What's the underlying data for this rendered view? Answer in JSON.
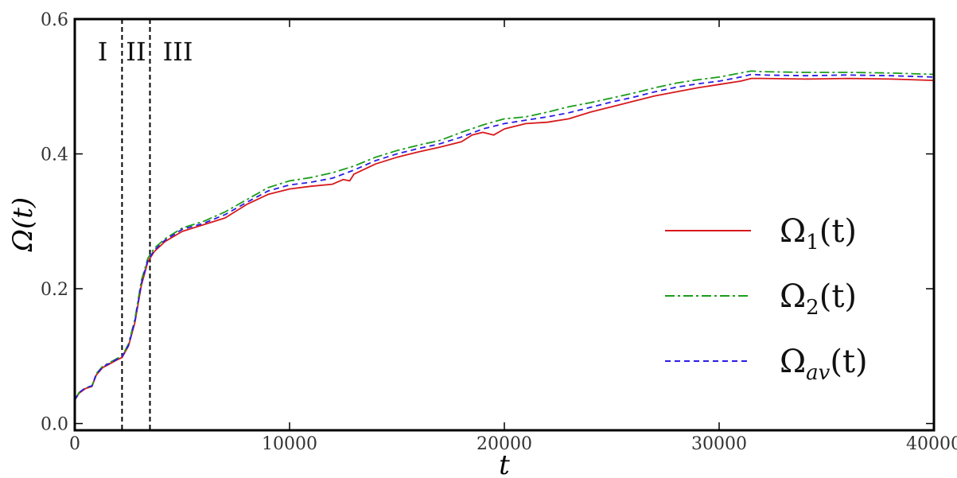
{
  "chart_data": {
    "type": "line",
    "xlabel": "t",
    "ylabel": "Ω(t)",
    "xlim": [
      0,
      40000
    ],
    "ylim": [
      -0.01,
      0.6
    ],
    "x_ticks": [
      0,
      10000,
      20000,
      30000,
      40000
    ],
    "x_tick_labels": [
      "0",
      "10000",
      "20000",
      "30000",
      "40000"
    ],
    "y_ticks": [
      0.0,
      0.2,
      0.4,
      0.6
    ],
    "y_tick_labels": [
      "0.0",
      "0.2",
      "0.4",
      "0.6"
    ],
    "grid": false,
    "legend_position": "right",
    "vlines": [
      {
        "x": 2200,
        "style": "dashed",
        "color": "#000000"
      },
      {
        "x": 3500,
        "style": "dashed",
        "color": "#000000"
      }
    ],
    "regions": [
      {
        "label": "I",
        "x": 1300
      },
      {
        "label": "II",
        "x": 2850
      },
      {
        "label": "III",
        "x": 4800
      }
    ],
    "series": [
      {
        "name_main": "Ω",
        "name_sub": "1",
        "name_suffix": "(t)",
        "color": "#d7191c",
        "dash": "",
        "x": [
          0,
          200,
          500,
          800,
          1000,
          1300,
          1600,
          2000,
          2200,
          2500,
          2800,
          3100,
          3400,
          3700,
          4200,
          5000,
          6000,
          7000,
          8000,
          9000,
          10000,
          11000,
          12000,
          12500,
          12800,
          13000,
          14000,
          15000,
          16000,
          17000,
          18000,
          18500,
          19000,
          19500,
          20000,
          21000,
          22000,
          23000,
          24000,
          25000,
          26000,
          27000,
          28000,
          29000,
          30000,
          31000,
          31500,
          32000,
          34000,
          36000,
          38000,
          40000
        ],
        "y": [
          0.035,
          0.045,
          0.052,
          0.055,
          0.072,
          0.083,
          0.088,
          0.095,
          0.098,
          0.115,
          0.15,
          0.205,
          0.24,
          0.255,
          0.27,
          0.285,
          0.295,
          0.305,
          0.325,
          0.34,
          0.348,
          0.352,
          0.355,
          0.362,
          0.36,
          0.37,
          0.385,
          0.395,
          0.403,
          0.41,
          0.418,
          0.428,
          0.432,
          0.428,
          0.437,
          0.445,
          0.447,
          0.452,
          0.462,
          0.47,
          0.478,
          0.486,
          0.492,
          0.498,
          0.503,
          0.508,
          0.512,
          0.512,
          0.511,
          0.512,
          0.511,
          0.509
        ]
      },
      {
        "name_main": "Ω",
        "name_sub": "2",
        "name_suffix": "(t)",
        "color": "#1a9d1a",
        "dash": "12,4,3,4",
        "x": [
          0,
          200,
          500,
          800,
          1000,
          1300,
          1600,
          2000,
          2200,
          2500,
          2800,
          3100,
          3400,
          3700,
          4200,
          5000,
          6000,
          7000,
          8000,
          9000,
          10000,
          11000,
          12000,
          13000,
          14000,
          15000,
          16000,
          17000,
          18000,
          19000,
          20000,
          21000,
          22000,
          23000,
          24000,
          25000,
          26000,
          27000,
          28000,
          29000,
          30000,
          31000,
          31500,
          32000,
          34000,
          36000,
          38000,
          40000
        ],
        "y": [
          0.035,
          0.046,
          0.053,
          0.056,
          0.074,
          0.085,
          0.09,
          0.097,
          0.1,
          0.118,
          0.155,
          0.212,
          0.245,
          0.26,
          0.274,
          0.29,
          0.3,
          0.314,
          0.332,
          0.35,
          0.36,
          0.365,
          0.372,
          0.382,
          0.395,
          0.405,
          0.413,
          0.42,
          0.432,
          0.443,
          0.452,
          0.455,
          0.462,
          0.47,
          0.476,
          0.483,
          0.49,
          0.498,
          0.505,
          0.51,
          0.514,
          0.52,
          0.523,
          0.522,
          0.521,
          0.521,
          0.52,
          0.518
        ]
      },
      {
        "name_main": "Ω",
        "name_sub": "av",
        "name_suffix": "(t)",
        "color": "#2b1de6",
        "dash": "7,5",
        "x": [
          0,
          200,
          500,
          800,
          1000,
          1300,
          1600,
          2000,
          2200,
          2500,
          2800,
          3100,
          3400,
          3700,
          4200,
          5000,
          6000,
          7000,
          8000,
          9000,
          10000,
          11000,
          12000,
          13000,
          14000,
          15000,
          16000,
          17000,
          18000,
          19000,
          20000,
          21000,
          22000,
          23000,
          24000,
          25000,
          26000,
          27000,
          28000,
          29000,
          30000,
          31000,
          31500,
          32000,
          34000,
          36000,
          38000,
          40000
        ],
        "y": [
          0.035,
          0.046,
          0.053,
          0.056,
          0.073,
          0.084,
          0.089,
          0.096,
          0.099,
          0.116,
          0.152,
          0.208,
          0.242,
          0.257,
          0.272,
          0.288,
          0.297,
          0.31,
          0.328,
          0.345,
          0.354,
          0.358,
          0.364,
          0.376,
          0.39,
          0.4,
          0.408,
          0.415,
          0.425,
          0.437,
          0.445,
          0.45,
          0.455,
          0.461,
          0.469,
          0.477,
          0.484,
          0.492,
          0.499,
          0.504,
          0.508,
          0.514,
          0.518,
          0.517,
          0.516,
          0.517,
          0.516,
          0.514
        ]
      }
    ]
  }
}
